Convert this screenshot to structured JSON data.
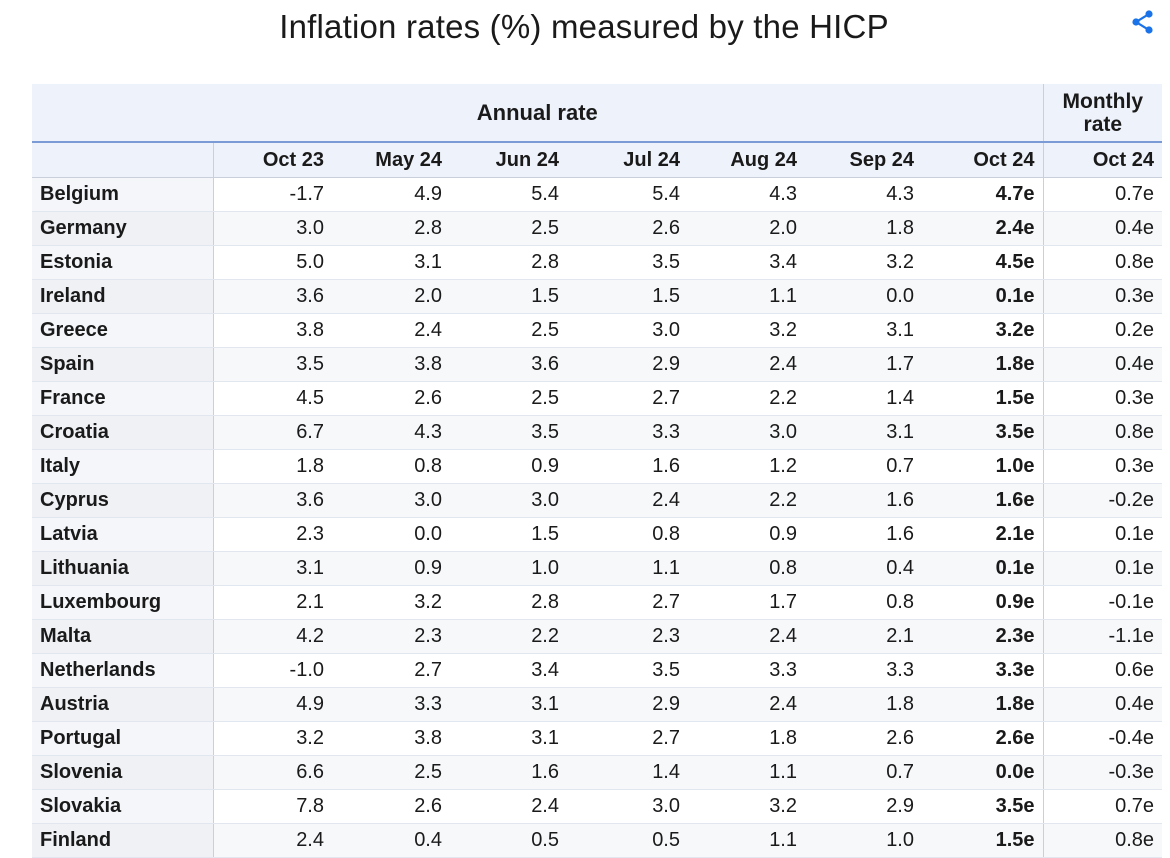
{
  "title": "Inflation rates (%) measured by the HICP",
  "share_icon": "share-icon",
  "accent_color": "#1a73e8",
  "table": {
    "group_headers": {
      "annual": "Annual rate",
      "monthly": "Monthly rate"
    },
    "columns": [
      "",
      "Oct 23",
      "May 24",
      "Jun 24",
      "Jul 24",
      "Aug 24",
      "Sep 24",
      "Oct 24",
      "Oct 24"
    ],
    "rows": [
      [
        "Belgium",
        "-1.7",
        "4.9",
        "5.4",
        "5.4",
        "4.3",
        "4.3",
        "4.7e",
        "0.7e"
      ],
      [
        "Germany",
        "3.0",
        "2.8",
        "2.5",
        "2.6",
        "2.0",
        "1.8",
        "2.4e",
        "0.4e"
      ],
      [
        "Estonia",
        "5.0",
        "3.1",
        "2.8",
        "3.5",
        "3.4",
        "3.2",
        "4.5e",
        "0.8e"
      ],
      [
        "Ireland",
        "3.6",
        "2.0",
        "1.5",
        "1.5",
        "1.1",
        "0.0",
        "0.1e",
        "0.3e"
      ],
      [
        "Greece",
        "3.8",
        "2.4",
        "2.5",
        "3.0",
        "3.2",
        "3.1",
        "3.2e",
        "0.2e"
      ],
      [
        "Spain",
        "3.5",
        "3.8",
        "3.6",
        "2.9",
        "2.4",
        "1.7",
        "1.8e",
        "0.4e"
      ],
      [
        "France",
        "4.5",
        "2.6",
        "2.5",
        "2.7",
        "2.2",
        "1.4",
        "1.5e",
        "0.3e"
      ],
      [
        "Croatia",
        "6.7",
        "4.3",
        "3.5",
        "3.3",
        "3.0",
        "3.1",
        "3.5e",
        "0.8e"
      ],
      [
        "Italy",
        "1.8",
        "0.8",
        "0.9",
        "1.6",
        "1.2",
        "0.7",
        "1.0e",
        "0.3e"
      ],
      [
        "Cyprus",
        "3.6",
        "3.0",
        "3.0",
        "2.4",
        "2.2",
        "1.6",
        "1.6e",
        "-0.2e"
      ],
      [
        "Latvia",
        "2.3",
        "0.0",
        "1.5",
        "0.8",
        "0.9",
        "1.6",
        "2.1e",
        "0.1e"
      ],
      [
        "Lithuania",
        "3.1",
        "0.9",
        "1.0",
        "1.1",
        "0.8",
        "0.4",
        "0.1e",
        "0.1e"
      ],
      [
        "Luxembourg",
        "2.1",
        "3.2",
        "2.8",
        "2.7",
        "1.7",
        "0.8",
        "0.9e",
        "-0.1e"
      ],
      [
        "Malta",
        "4.2",
        "2.3",
        "2.2",
        "2.3",
        "2.4",
        "2.1",
        "2.3e",
        "-1.1e"
      ],
      [
        "Netherlands",
        "-1.0",
        "2.7",
        "3.4",
        "3.5",
        "3.3",
        "3.3",
        "3.3e",
        "0.6e"
      ],
      [
        "Austria",
        "4.9",
        "3.3",
        "3.1",
        "2.9",
        "2.4",
        "1.8",
        "1.8e",
        "0.4e"
      ],
      [
        "Portugal",
        "3.2",
        "3.8",
        "3.1",
        "2.7",
        "1.8",
        "2.6",
        "2.6e",
        "-0.4e"
      ],
      [
        "Slovenia",
        "6.6",
        "2.5",
        "1.6",
        "1.4",
        "1.1",
        "0.7",
        "0.0e",
        "-0.3e"
      ],
      [
        "Slovakia",
        "7.8",
        "2.6",
        "2.4",
        "3.0",
        "3.2",
        "2.9",
        "3.5e",
        "0.7e"
      ],
      [
        "Finland",
        "2.4",
        "0.4",
        "0.5",
        "0.5",
        "1.1",
        "1.0",
        "1.5e",
        "0.8e"
      ]
    ]
  }
}
